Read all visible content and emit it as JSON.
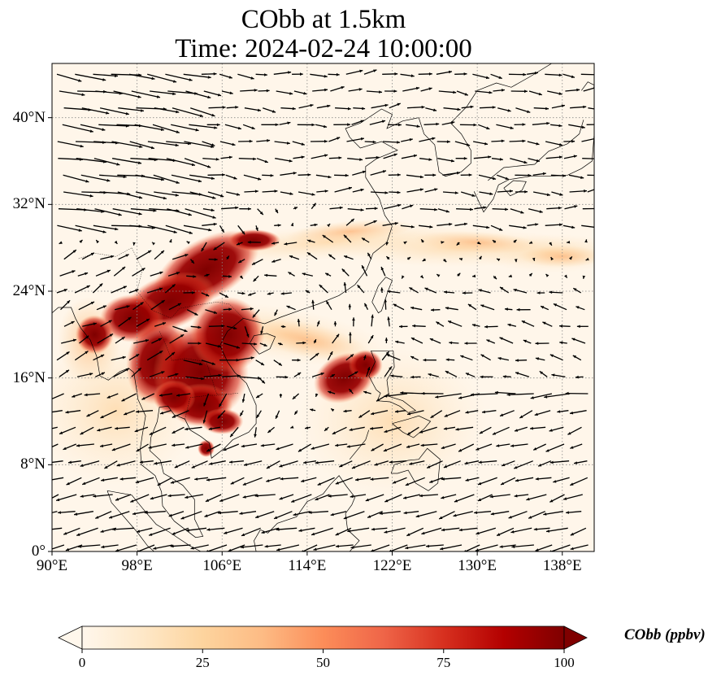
{
  "title": {
    "line1": "CObb at 1.5km",
    "line2": "Time: 2024-02-24 10:00:00"
  },
  "map": {
    "projection": "PlateCarree",
    "lon_range": [
      90,
      141
    ],
    "lat_range": [
      0,
      45
    ],
    "gridlines": true,
    "gridline_style": "dotted",
    "x_ticks": [
      "90°E",
      "98°E",
      "106°E",
      "114°E",
      "122°E",
      "130°E",
      "138°E"
    ],
    "x_tick_values": [
      90,
      98,
      106,
      114,
      122,
      130,
      138
    ],
    "y_ticks": [
      "0°",
      "8°N",
      "16°N",
      "24°N",
      "32°N",
      "40°N"
    ],
    "y_tick_values": [
      0,
      8,
      16,
      24,
      32,
      40
    ],
    "field": "CObb concentration",
    "overlay": "wind vectors (quiver)",
    "hotspots_deg": [
      {
        "region": "Indochina / southern China",
        "lon": [
          95,
          111
        ],
        "lat": [
          10,
          29
        ],
        "level": "high"
      },
      {
        "region": "Luzon (Philippines)",
        "lon": [
          115,
          120
        ],
        "lat": [
          14,
          18
        ],
        "level": "high"
      },
      {
        "region": "east of Taiwan to Japan band",
        "lon": [
          118,
          141
        ],
        "lat": [
          25,
          31
        ],
        "level": "low"
      }
    ]
  },
  "colorbar": {
    "label": "CObb (ppbv)",
    "min": 0,
    "max": 100,
    "ticks": [
      "0",
      "25",
      "50",
      "75",
      "100"
    ],
    "tick_values": [
      0,
      25,
      50,
      75,
      100
    ],
    "colormap": "OrRd",
    "colors": [
      "#fff7ec",
      "#fee8c8",
      "#fdd49e",
      "#fdbb84",
      "#fc8d59",
      "#ef6548",
      "#d7301f",
      "#b30000",
      "#7f0000"
    ],
    "extend": "both"
  },
  "colors": {
    "background": "#fff5e6",
    "coast": "#000000",
    "arrow": "#000000"
  }
}
